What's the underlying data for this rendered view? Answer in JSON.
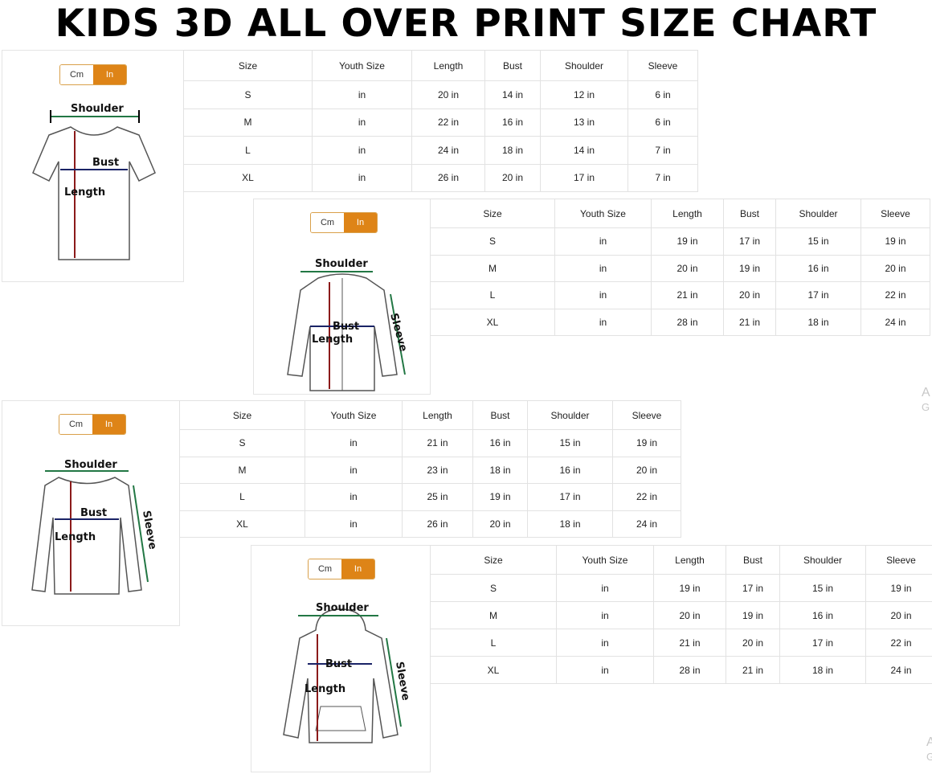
{
  "title": "KIDS 3D ALL OVER PRINT SIZE CHART",
  "unit_toggle": {
    "cm": "Cm",
    "in": "In",
    "selected": "In",
    "accent": "#de8417"
  },
  "labels": {
    "shoulder": "Shoulder",
    "bust": "Bust",
    "length": "Length",
    "sleeve": "Sleeve"
  },
  "columns": [
    "Size",
    "Youth Size",
    "Length",
    "Bust",
    "Shoulder",
    "Sleeve"
  ],
  "charts": [
    {
      "garment": "t-shirt",
      "rows": [
        [
          "S",
          "in",
          "20 in",
          "14 in",
          "12 in",
          "6 in"
        ],
        [
          "M",
          "in",
          "22 in",
          "16 in",
          "13 in",
          "6 in"
        ],
        [
          "L",
          "in",
          "24 in",
          "18 in",
          "14 in",
          "7 in"
        ],
        [
          "XL",
          "in",
          "26 in",
          "20 in",
          "17 in",
          "7 in"
        ]
      ]
    },
    {
      "garment": "zip-hoodie",
      "rows": [
        [
          "S",
          "in",
          "19 in",
          "17 in",
          "15 in",
          "19 in"
        ],
        [
          "M",
          "in",
          "20 in",
          "19 in",
          "16 in",
          "20 in"
        ],
        [
          "L",
          "in",
          "21 in",
          "20 in",
          "17 in",
          "22 in"
        ],
        [
          "XL",
          "in",
          "28 in",
          "21 in",
          "18 in",
          "24 in"
        ]
      ]
    },
    {
      "garment": "long-sleeve",
      "rows": [
        [
          "S",
          "in",
          "21 in",
          "16 in",
          "15 in",
          "19 in"
        ],
        [
          "M",
          "in",
          "23 in",
          "18 in",
          "16 in",
          "20 in"
        ],
        [
          "L",
          "in",
          "25 in",
          "19 in",
          "17 in",
          "22 in"
        ],
        [
          "XL",
          "in",
          "26 in",
          "20 in",
          "18 in",
          "24 in"
        ]
      ]
    },
    {
      "garment": "pullover-hoodie",
      "rows": [
        [
          "S",
          "in",
          "19 in",
          "17 in",
          "15 in",
          "19 in"
        ],
        [
          "M",
          "in",
          "20 in",
          "19 in",
          "16 in",
          "20 in"
        ],
        [
          "L",
          "in",
          "21 in",
          "20 in",
          "17 in",
          "22 in"
        ],
        [
          "XL",
          "in",
          "28 in",
          "21 in",
          "18 in",
          "24 in"
        ]
      ]
    }
  ],
  "watermark": {
    "line1": "A",
    "line2": "G"
  }
}
